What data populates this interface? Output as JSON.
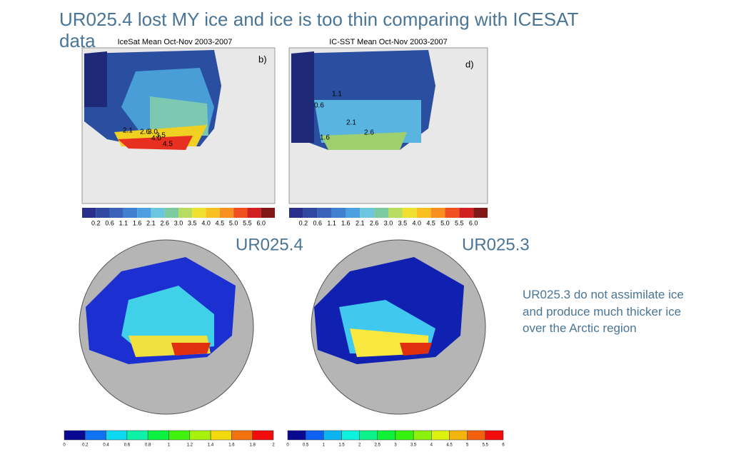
{
  "title": "UR025.4 lost MY ice and ice is too thin comparing with ICESAT data",
  "obs_panels": [
    {
      "title": "IceSat Mean Oct-Nov 2003-2007",
      "tag": "b)",
      "contour_labels": [
        "2.1",
        "2.6",
        "3.0",
        "3.5",
        "4.0",
        "4.5"
      ],
      "colorbar": [
        "0.2",
        "0.6",
        "1.1",
        "1.6",
        "2.1",
        "2.6",
        "3.0",
        "3.5",
        "4.0",
        "4.5",
        "5.0",
        "5.5",
        "6.0"
      ]
    },
    {
      "title": "IC-SST Mean Oct-Nov 2003-2007",
      "tag": "d)",
      "contour_labels": [
        "0.6",
        "1.1",
        "2.1",
        "2.6",
        "1.6"
      ],
      "colorbar": [
        "0.2",
        "0.6",
        "1.1",
        "1.6",
        "2.1",
        "2.6",
        "3.0",
        "3.5",
        "4.0",
        "4.5",
        "5.0",
        "5.5",
        "6.0"
      ]
    }
  ],
  "model_panels": [
    {
      "label": "UR025.4",
      "colorbar": [
        "0",
        "0.2",
        "0.4",
        "0.6",
        "0.8",
        "1",
        "1.2",
        "1.4",
        "1.6",
        "1.8",
        "2"
      ]
    },
    {
      "label": "UR025.3",
      "colorbar": [
        "0",
        "0.5",
        "1",
        "1.5",
        "2",
        "2.5",
        "3",
        "3.5",
        "4",
        "4.5",
        "5",
        "5.5",
        "6"
      ]
    }
  ],
  "note": "UR025.3 do not assimilate ice and produce much thicker ice over the Arctic region"
}
